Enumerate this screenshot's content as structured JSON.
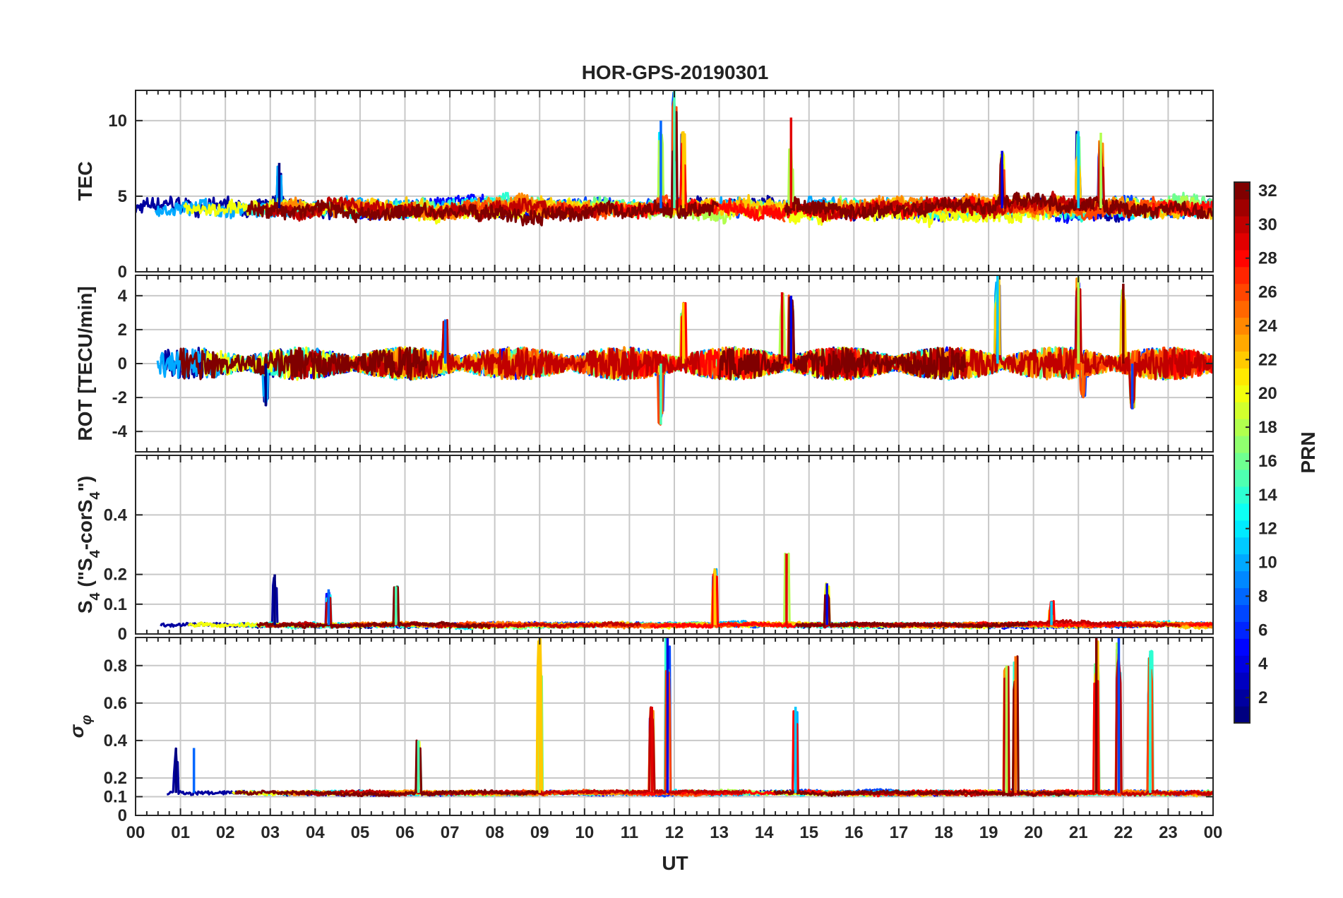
{
  "chart_data": {
    "type": "line",
    "title": "HOR-GPS-20190301",
    "xlabel": "UT",
    "x_tick_labels": [
      "00",
      "01",
      "02",
      "03",
      "04",
      "05",
      "06",
      "07",
      "08",
      "09",
      "10",
      "11",
      "12",
      "13",
      "14",
      "15",
      "16",
      "17",
      "18",
      "19",
      "20",
      "21",
      "22",
      "23",
      "00"
    ],
    "xlim_hours": [
      0,
      24
    ],
    "colorbar": {
      "label": "PRN",
      "range": [
        1,
        32
      ],
      "tick_labels": [
        "2",
        "4",
        "6",
        "8",
        "10",
        "12",
        "14",
        "16",
        "18",
        "20",
        "22",
        "24",
        "26",
        "28",
        "30",
        "32"
      ],
      "colormap": "jet"
    },
    "panels": [
      {
        "id": "tec",
        "ylabel": "TEC",
        "ylim": [
          0,
          12
        ],
        "y_ticks": [
          0,
          5,
          10
        ],
        "y_tick_labels": [
          "0",
          "5",
          "10"
        ],
        "baseline": 4.2,
        "amplitude": 1.6,
        "spike_hours": [
          3.2,
          11.7,
          12.0,
          12.2,
          14.6,
          19.3,
          21.0,
          21.5
        ],
        "spike_values": [
          7.2,
          10.0,
          12.0,
          9.3,
          10.2,
          8.0,
          9.3,
          9.2
        ]
      },
      {
        "id": "rot",
        "ylabel": "ROT [TECU/min]",
        "ylim": [
          -5.2,
          5.2
        ],
        "y_ticks": [
          -4,
          -2,
          0,
          2,
          4
        ],
        "y_tick_labels": [
          "-4",
          "-2",
          "0",
          "2",
          "4"
        ],
        "baseline": 0,
        "amplitude": 0.8,
        "spike_hours": [
          2.9,
          6.9,
          11.7,
          12.2,
          14.4,
          14.6,
          19.2,
          21.0,
          21.1,
          22.0,
          22.2
        ],
        "spike_values": [
          -2.5,
          2.6,
          -3.6,
          3.6,
          4.2,
          4.0,
          5.3,
          5.1,
          -2.0,
          4.7,
          -2.7
        ]
      },
      {
        "id": "s4",
        "ylabel": "S4 (\"S4-corS4\")",
        "ylabel_main": "S",
        "ylabel_sub1": "4",
        "ylabel_mid": " (\"S",
        "ylabel_sub2": "4",
        "ylabel_mid2": "-corS",
        "ylabel_sub3": "4",
        "ylabel_end": "\")",
        "ylim": [
          0,
          0.6
        ],
        "y_ticks": [
          0,
          0.1,
          0.2,
          0.4
        ],
        "y_tick_labels": [
          "0",
          "0.1",
          "0.2",
          "0.4"
        ],
        "baseline": 0.03,
        "amplitude": 0.02,
        "spike_hours": [
          3.1,
          4.3,
          5.8,
          12.9,
          14.5,
          15.4,
          20.4
        ],
        "spike_values": [
          0.2,
          0.15,
          0.16,
          0.22,
          0.27,
          0.17,
          0.11
        ]
      },
      {
        "id": "sigma",
        "ylabel": "σφ",
        "ylabel_main": "σ",
        "ylabel_sub": "φ",
        "ylim": [
          0,
          0.95
        ],
        "y_ticks": [
          0,
          0.1,
          0.2,
          0.4,
          0.6,
          0.8
        ],
        "y_tick_labels": [
          "0",
          "0.1",
          "0.2",
          "0.4",
          "0.6",
          "0.8"
        ],
        "baseline": 0.12,
        "amplitude": 0.03,
        "spike_hours": [
          0.9,
          1.3,
          6.3,
          9.0,
          11.5,
          11.85,
          14.7,
          19.4,
          19.6,
          21.4,
          21.9,
          22.6
        ],
        "spike_values": [
          0.36,
          0.36,
          0.4,
          0.95,
          0.58,
          0.95,
          0.58,
          0.8,
          0.85,
          0.95,
          0.95,
          0.88
        ]
      }
    ]
  }
}
